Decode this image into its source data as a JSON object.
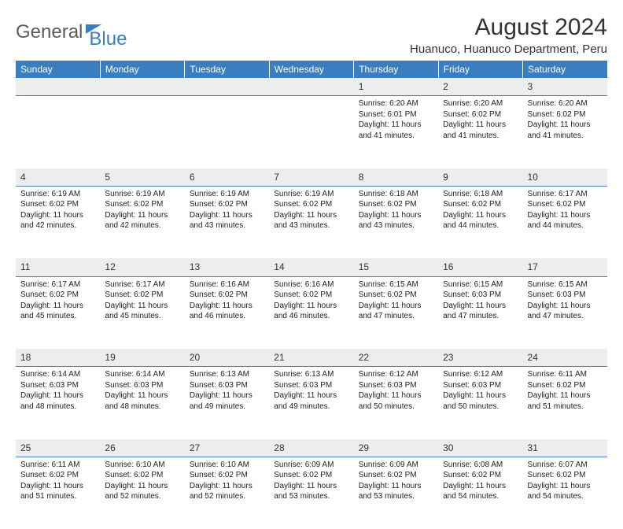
{
  "logo": {
    "part1": "General",
    "part2": "Blue"
  },
  "title": "August 2024",
  "location": "Huanuco, Huanuco Department, Peru",
  "day_headers": [
    "Sunday",
    "Monday",
    "Tuesday",
    "Wednesday",
    "Thursday",
    "Friday",
    "Saturday"
  ],
  "colors": {
    "header_bg": "#3a7ebf",
    "header_text": "#ffffff",
    "daynum_bg": "#ededed",
    "daynum_border": "#3a7ebf",
    "logo_gray": "#5b5b5b",
    "logo_blue": "#3a7ebf"
  },
  "weeks": [
    {
      "nums": [
        "",
        "",
        "",
        "",
        "1",
        "2",
        "3"
      ],
      "details": [
        [],
        [],
        [],
        [],
        [
          "Sunrise: 6:20 AM",
          "Sunset: 6:01 PM",
          "Daylight: 11 hours",
          "and 41 minutes."
        ],
        [
          "Sunrise: 6:20 AM",
          "Sunset: 6:02 PM",
          "Daylight: 11 hours",
          "and 41 minutes."
        ],
        [
          "Sunrise: 6:20 AM",
          "Sunset: 6:02 PM",
          "Daylight: 11 hours",
          "and 41 minutes."
        ]
      ]
    },
    {
      "nums": [
        "4",
        "5",
        "6",
        "7",
        "8",
        "9",
        "10"
      ],
      "details": [
        [
          "Sunrise: 6:19 AM",
          "Sunset: 6:02 PM",
          "Daylight: 11 hours",
          "and 42 minutes."
        ],
        [
          "Sunrise: 6:19 AM",
          "Sunset: 6:02 PM",
          "Daylight: 11 hours",
          "and 42 minutes."
        ],
        [
          "Sunrise: 6:19 AM",
          "Sunset: 6:02 PM",
          "Daylight: 11 hours",
          "and 43 minutes."
        ],
        [
          "Sunrise: 6:19 AM",
          "Sunset: 6:02 PM",
          "Daylight: 11 hours",
          "and 43 minutes."
        ],
        [
          "Sunrise: 6:18 AM",
          "Sunset: 6:02 PM",
          "Daylight: 11 hours",
          "and 43 minutes."
        ],
        [
          "Sunrise: 6:18 AM",
          "Sunset: 6:02 PM",
          "Daylight: 11 hours",
          "and 44 minutes."
        ],
        [
          "Sunrise: 6:17 AM",
          "Sunset: 6:02 PM",
          "Daylight: 11 hours",
          "and 44 minutes."
        ]
      ]
    },
    {
      "nums": [
        "11",
        "12",
        "13",
        "14",
        "15",
        "16",
        "17"
      ],
      "details": [
        [
          "Sunrise: 6:17 AM",
          "Sunset: 6:02 PM",
          "Daylight: 11 hours",
          "and 45 minutes."
        ],
        [
          "Sunrise: 6:17 AM",
          "Sunset: 6:02 PM",
          "Daylight: 11 hours",
          "and 45 minutes."
        ],
        [
          "Sunrise: 6:16 AM",
          "Sunset: 6:02 PM",
          "Daylight: 11 hours",
          "and 46 minutes."
        ],
        [
          "Sunrise: 6:16 AM",
          "Sunset: 6:02 PM",
          "Daylight: 11 hours",
          "and 46 minutes."
        ],
        [
          "Sunrise: 6:15 AM",
          "Sunset: 6:02 PM",
          "Daylight: 11 hours",
          "and 47 minutes."
        ],
        [
          "Sunrise: 6:15 AM",
          "Sunset: 6:03 PM",
          "Daylight: 11 hours",
          "and 47 minutes."
        ],
        [
          "Sunrise: 6:15 AM",
          "Sunset: 6:03 PM",
          "Daylight: 11 hours",
          "and 47 minutes."
        ]
      ]
    },
    {
      "nums": [
        "18",
        "19",
        "20",
        "21",
        "22",
        "23",
        "24"
      ],
      "details": [
        [
          "Sunrise: 6:14 AM",
          "Sunset: 6:03 PM",
          "Daylight: 11 hours",
          "and 48 minutes."
        ],
        [
          "Sunrise: 6:14 AM",
          "Sunset: 6:03 PM",
          "Daylight: 11 hours",
          "and 48 minutes."
        ],
        [
          "Sunrise: 6:13 AM",
          "Sunset: 6:03 PM",
          "Daylight: 11 hours",
          "and 49 minutes."
        ],
        [
          "Sunrise: 6:13 AM",
          "Sunset: 6:03 PM",
          "Daylight: 11 hours",
          "and 49 minutes."
        ],
        [
          "Sunrise: 6:12 AM",
          "Sunset: 6:03 PM",
          "Daylight: 11 hours",
          "and 50 minutes."
        ],
        [
          "Sunrise: 6:12 AM",
          "Sunset: 6:03 PM",
          "Daylight: 11 hours",
          "and 50 minutes."
        ],
        [
          "Sunrise: 6:11 AM",
          "Sunset: 6:02 PM",
          "Daylight: 11 hours",
          "and 51 minutes."
        ]
      ]
    },
    {
      "nums": [
        "25",
        "26",
        "27",
        "28",
        "29",
        "30",
        "31"
      ],
      "details": [
        [
          "Sunrise: 6:11 AM",
          "Sunset: 6:02 PM",
          "Daylight: 11 hours",
          "and 51 minutes."
        ],
        [
          "Sunrise: 6:10 AM",
          "Sunset: 6:02 PM",
          "Daylight: 11 hours",
          "and 52 minutes."
        ],
        [
          "Sunrise: 6:10 AM",
          "Sunset: 6:02 PM",
          "Daylight: 11 hours",
          "and 52 minutes."
        ],
        [
          "Sunrise: 6:09 AM",
          "Sunset: 6:02 PM",
          "Daylight: 11 hours",
          "and 53 minutes."
        ],
        [
          "Sunrise: 6:09 AM",
          "Sunset: 6:02 PM",
          "Daylight: 11 hours",
          "and 53 minutes."
        ],
        [
          "Sunrise: 6:08 AM",
          "Sunset: 6:02 PM",
          "Daylight: 11 hours",
          "and 54 minutes."
        ],
        [
          "Sunrise: 6:07 AM",
          "Sunset: 6:02 PM",
          "Daylight: 11 hours",
          "and 54 minutes."
        ]
      ]
    }
  ]
}
